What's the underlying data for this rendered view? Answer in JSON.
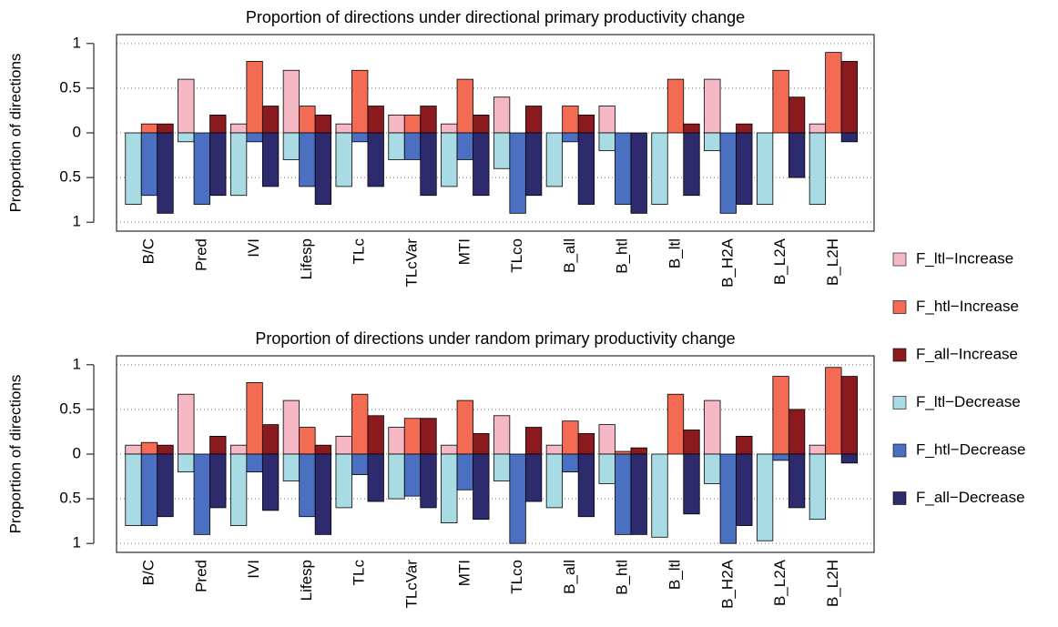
{
  "chart_data": [
    {
      "type": "bar",
      "title": "Proportion of directions under directional primary productivity change",
      "y_label": "Proportion of directions",
      "categories": [
        "B/C",
        "Pred",
        "IVI",
        "Lifesp",
        "TLc",
        "TLcVar",
        "MTI",
        "TLco",
        "B_all",
        "B_htl",
        "B_ltl",
        "B_H2A",
        "B_L2A",
        "B_L2H"
      ],
      "series": [
        {
          "name": "F_ltl−Increase",
          "color": "#f5b8c4",
          "values": [
            0,
            0.6,
            0.1,
            0.7,
            0.1,
            0.2,
            0.1,
            0.4,
            0,
            0.3,
            0,
            0.6,
            0,
            0.1
          ]
        },
        {
          "name": "F_htl−Increase",
          "color": "#f26b52",
          "values": [
            0.1,
            0,
            0.8,
            0.3,
            0.7,
            0.2,
            0.6,
            0,
            0.3,
            0,
            0.6,
            0,
            0.7,
            0.9
          ]
        },
        {
          "name": "F_all−Increase",
          "color": "#8b1a1e",
          "values": [
            0.1,
            0.2,
            0.3,
            0.2,
            0.3,
            0.3,
            0.2,
            0.3,
            0.2,
            0,
            0.1,
            0.1,
            0.4,
            0.8
          ]
        },
        {
          "name": "F_ltl−Decrease",
          "color": "#a8dbe4",
          "values": [
            -0.8,
            -0.1,
            -0.7,
            -0.3,
            -0.6,
            -0.3,
            -0.6,
            -0.4,
            -0.6,
            -0.2,
            -0.8,
            -0.2,
            -0.8,
            -0.8
          ]
        },
        {
          "name": "F_htl−Decrease",
          "color": "#4b70c2",
          "values": [
            -0.7,
            -0.8,
            -0.1,
            -0.6,
            -0.1,
            -0.3,
            -0.3,
            -0.9,
            -0.1,
            -0.8,
            0,
            -0.9,
            0,
            0
          ]
        },
        {
          "name": "F_all−Decrease",
          "color": "#2e2a6e",
          "values": [
            -0.9,
            -0.7,
            -0.6,
            -0.8,
            -0.6,
            -0.7,
            -0.7,
            -0.7,
            -0.8,
            -0.9,
            -0.7,
            -0.8,
            -0.5,
            -0.1
          ]
        }
      ],
      "ylim": [
        -1.1,
        1.1
      ],
      "yticks": [
        {
          "value": -1,
          "label": "1"
        },
        {
          "value": -0.5,
          "label": "0.5"
        },
        0,
        0.5,
        1
      ],
      "grid": true
    },
    {
      "type": "bar",
      "title": "Proportion of directions under random primary productivity change",
      "y_label": "Proportion of directions",
      "categories": [
        "B/C",
        "Pred",
        "IVI",
        "Lifesp",
        "TLc",
        "TLcVar",
        "MTI",
        "TLco",
        "B_all",
        "B_htl",
        "B_ltl",
        "B_H2A",
        "B_L2A",
        "B_L2H"
      ],
      "series": [
        {
          "values": [
            0.1,
            0.67,
            0.1,
            0.6,
            0.2,
            0.3,
            0.1,
            0.43,
            0.1,
            0.33,
            0,
            0.6,
            0,
            0.1
          ]
        },
        {
          "values": [
            0.13,
            0,
            0.8,
            0.3,
            0.67,
            0.4,
            0.6,
            0,
            0.37,
            0.03,
            0.67,
            0,
            0.87,
            0.97
          ]
        },
        {
          "values": [
            0.1,
            0.2,
            0.33,
            0.1,
            0.43,
            0.4,
            0.23,
            0.3,
            0.23,
            0.07,
            0.27,
            0.2,
            0.5,
            0.87
          ]
        },
        {
          "values": [
            -0.8,
            -0.2,
            -0.8,
            -0.3,
            -0.6,
            -0.5,
            -0.77,
            -0.3,
            -0.6,
            -0.33,
            -0.93,
            -0.33,
            -0.97,
            -0.73
          ]
        },
        {
          "values": [
            -0.8,
            -0.9,
            -0.2,
            -0.7,
            -0.23,
            -0.47,
            -0.4,
            -1,
            -0.2,
            -0.9,
            0,
            -1,
            -0.07,
            0
          ]
        },
        {
          "values": [
            -0.7,
            -0.6,
            -0.63,
            -0.9,
            -0.53,
            -0.6,
            -0.73,
            -0.53,
            -0.7,
            -0.9,
            -0.67,
            -0.8,
            -0.6,
            -0.1
          ]
        }
      ],
      "ylim": [
        -1.1,
        1.1
      ],
      "yticks": [
        {
          "value": -1,
          "label": "1"
        },
        {
          "value": -0.5,
          "label": "0.5"
        },
        0,
        0.5,
        1
      ],
      "grid": true
    }
  ]
}
